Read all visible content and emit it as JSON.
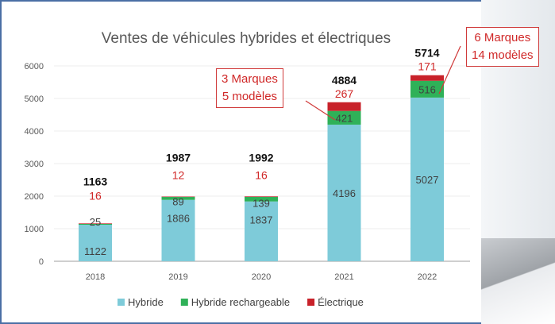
{
  "chart_data": {
    "type": "bar",
    "stacked": true,
    "title": "Ventes de véhicules hybrides et électriques",
    "xlabel": "",
    "ylabel": "",
    "categories": [
      "2018",
      "2019",
      "2020",
      "2021",
      "2022"
    ],
    "series": [
      {
        "name": "Hybride",
        "color": "#7ecbd9",
        "values": [
          1122,
          1886,
          1837,
          4196,
          5027
        ]
      },
      {
        "name": "Hybride rechargeable",
        "color": "#2fb158",
        "values": [
          25,
          89,
          139,
          421,
          516
        ]
      },
      {
        "name": "Électrique",
        "color": "#c8222a",
        "values": [
          16,
          12,
          16,
          267,
          171
        ]
      }
    ],
    "totals": [
      1163,
      1987,
      1992,
      4884,
      5714
    ],
    "ylim": [
      0,
      6000
    ],
    "yticks": [
      0,
      1000,
      2000,
      3000,
      4000,
      5000,
      6000
    ],
    "grid": true,
    "legend": "bottom",
    "annotations": [
      {
        "category": "2021",
        "lines": [
          "3 Marques",
          "5 modèles"
        ]
      },
      {
        "category": "2022",
        "lines": [
          "6 Marques",
          "14 modèles"
        ]
      }
    ]
  }
}
